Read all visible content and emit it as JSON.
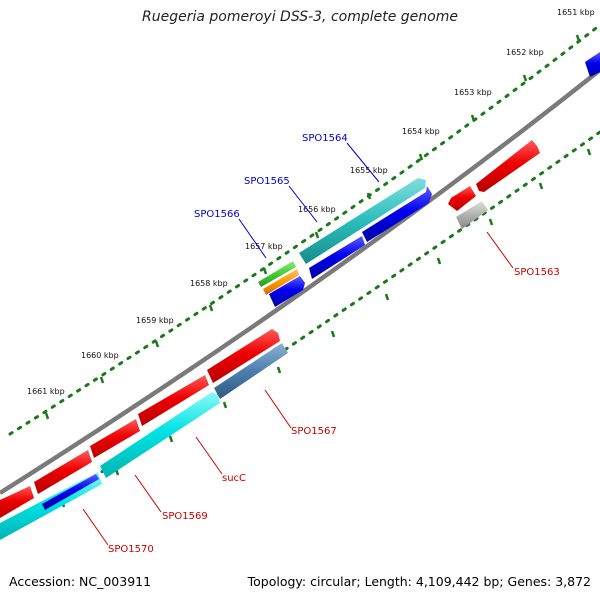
{
  "title": "Ruegeria pomeroyi DSS-3, complete genome",
  "footer": {
    "accession": "Accession: NC_003911",
    "summary": "Topology: circular; Length: 4,109,442 bp; Genes: 3,872"
  },
  "ruler_labels": [
    "1651 kbp",
    "1652 kbp",
    "1653 kbp",
    "1654 kbp",
    "1655 kbp",
    "1656 kbp",
    "1657 kbp",
    "1658 kbp",
    "1659 kbp",
    "1660 kbp",
    "1661 kbp"
  ],
  "gene_labels": {
    "forward": [
      "SPO1564",
      "SPO1565",
      "SPO1566"
    ],
    "reverse": [
      "SPO1563",
      "SPO1567",
      "sucC",
      "SPO1569",
      "SPO1570"
    ]
  },
  "colors": {
    "backbone": "#7a7a7a",
    "ruler_tick": "#1a7a1a",
    "forward_label": "#0000cc",
    "reverse_label": "#cc0000",
    "cds_red": "#ee0000",
    "cds_blue": "#0000ee",
    "cds_cyan": "#00dddd",
    "cds_teal": "#2cbcbc",
    "cds_steel": "#4d7fae",
    "cds_grey": "#b0b0b0",
    "cds_green": "#44cc33",
    "cds_orange": "#ff9900"
  }
}
